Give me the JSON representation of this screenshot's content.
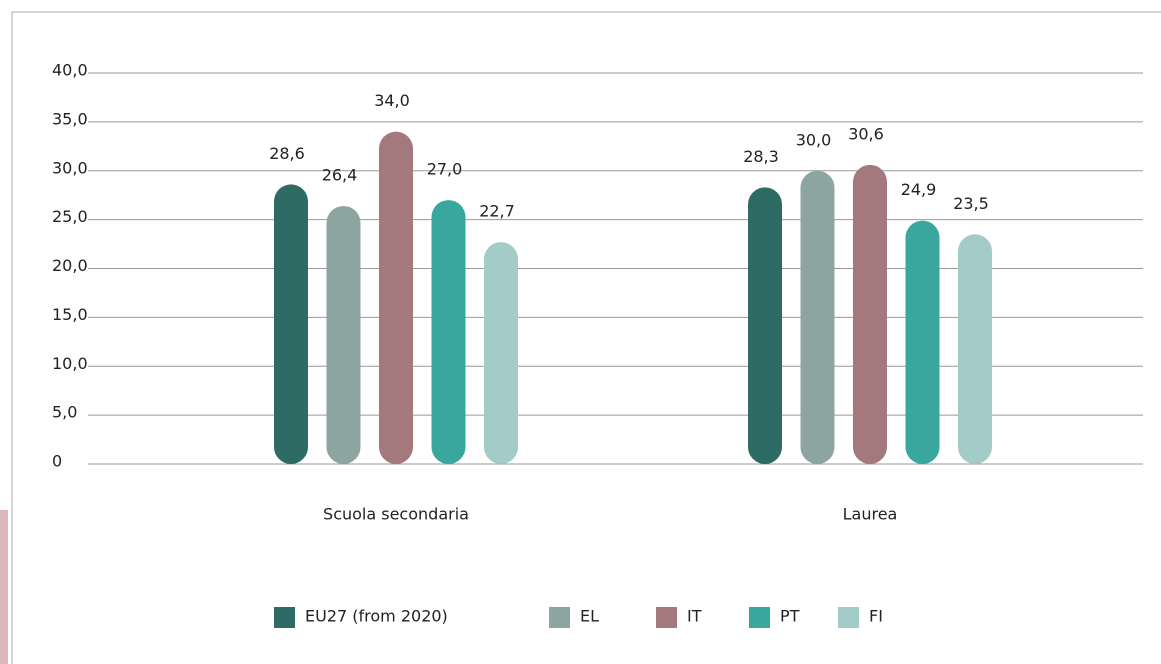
{
  "chart_data": {
    "type": "bar",
    "categories": [
      "Scuola secondaria",
      "Laurea"
    ],
    "series": [
      {
        "name": "EU27 (from 2020)",
        "color": "#2e6b65",
        "values": [
          28.6,
          28.3
        ],
        "value_labels": [
          "28,6",
          "28,3"
        ]
      },
      {
        "name": "EL",
        "color": "#8ca5a0",
        "values": [
          26.4,
          30.0
        ],
        "value_labels": [
          "26,4",
          "30,0"
        ]
      },
      {
        "name": "IT",
        "color": "#a3797d",
        "values": [
          34.0,
          30.6
        ],
        "value_labels": [
          "34,0",
          "30,6"
        ]
      },
      {
        "name": "PT",
        "color": "#3aa79e",
        "values": [
          27.0,
          24.9
        ],
        "value_labels": [
          "27,0",
          "24,9"
        ]
      },
      {
        "name": "FI",
        "color": "#a3cbc7",
        "values": [
          22.7,
          23.5
        ],
        "value_labels": [
          "22,7",
          "23,5"
        ]
      }
    ],
    "ylim": [
      0,
      40
    ],
    "yticks": [
      0,
      {
        "value": 5,
        "label": "5,0"
      },
      {
        "value": 10,
        "label": "10,0"
      },
      {
        "value": 15,
        "label": "15,0"
      },
      {
        "value": 20,
        "label": "20,0"
      },
      {
        "value": 25,
        "label": "25,0"
      },
      {
        "value": 30,
        "label": "30,0"
      },
      {
        "value": 35,
        "label": "35,0"
      },
      {
        "value": 40,
        "label": "40,0"
      }
    ],
    "grid": true,
    "legend": "bottom"
  }
}
